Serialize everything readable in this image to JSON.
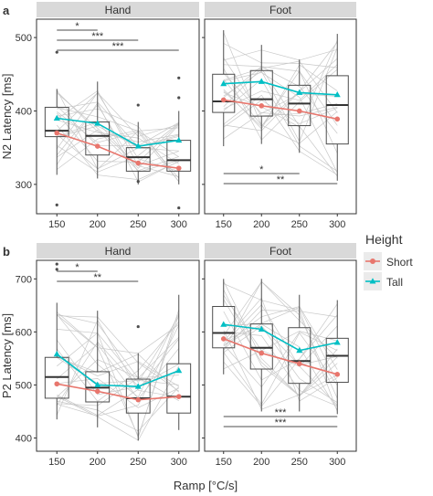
{
  "figure": {
    "x_axis_label": "Ramp [°C/s]",
    "legend": {
      "title": "Height",
      "items": [
        {
          "name": "Short",
          "color": "#E8766D",
          "marker": "circle"
        },
        {
          "name": "Tall",
          "color": "#00BFC4",
          "marker": "triangle"
        }
      ]
    }
  },
  "chart_data": [
    {
      "type": "box",
      "panel_letter": "a",
      "facet": "Hand",
      "ylabel": "N2 Latency [ms]",
      "categories": [
        "150",
        "200",
        "250",
        "300"
      ],
      "yticks": [
        300,
        400,
        500
      ],
      "ylim": [
        260,
        525
      ],
      "boxes": [
        {
          "whisker_low": 313,
          "q1": 365,
          "median": 373,
          "q3": 405,
          "whisker_high": 430,
          "outliers": [
            480,
            272
          ]
        },
        {
          "whisker_low": 308,
          "q1": 340,
          "median": 366,
          "q3": 385,
          "whisker_high": 440,
          "outliers": []
        },
        {
          "whisker_low": 300,
          "q1": 318,
          "median": 337,
          "q3": 350,
          "whisker_high": 385,
          "outliers": [
            408,
            304
          ]
        },
        {
          "whisker_low": 300,
          "q1": 318,
          "median": 333,
          "q3": 360,
          "whisker_high": 400,
          "outliers": [
            445,
            418,
            268
          ]
        }
      ],
      "series": [
        {
          "name": "Short",
          "values": [
            370,
            352,
            329,
            322
          ]
        },
        {
          "name": "Tall",
          "values": [
            390,
            383,
            352,
            360
          ]
        }
      ],
      "significance": [
        {
          "from": "150",
          "to": "200",
          "label": "*"
        },
        {
          "from": "150",
          "to": "250",
          "label": "***"
        },
        {
          "from": "150",
          "to": "300",
          "label": "***"
        }
      ]
    },
    {
      "type": "box",
      "panel_letter": "",
      "facet": "Foot",
      "ylabel": "",
      "categories": [
        "150",
        "200",
        "250",
        "300"
      ],
      "yticks": [
        300,
        400,
        500
      ],
      "ylim": [
        260,
        525
      ],
      "boxes": [
        {
          "whisker_low": 352,
          "q1": 398,
          "median": 413,
          "q3": 450,
          "whisker_high": 510,
          "outliers": []
        },
        {
          "whisker_low": 355,
          "q1": 393,
          "median": 416,
          "q3": 455,
          "whisker_high": 490,
          "outliers": []
        },
        {
          "whisker_low": 343,
          "q1": 380,
          "median": 410,
          "q3": 435,
          "whisker_high": 470,
          "outliers": []
        },
        {
          "whisker_low": 305,
          "q1": 355,
          "median": 408,
          "q3": 448,
          "whisker_high": 505,
          "outliers": []
        }
      ],
      "series": [
        {
          "name": "Short",
          "values": [
            415,
            407,
            400,
            389
          ]
        },
        {
          "name": "Tall",
          "values": [
            437,
            440,
            425,
            422
          ]
        }
      ],
      "significance": [
        {
          "from": "150",
          "to": "250",
          "label": "*"
        },
        {
          "from": "150",
          "to": "300",
          "label": "**"
        }
      ]
    },
    {
      "type": "box",
      "panel_letter": "b",
      "facet": "Hand",
      "ylabel": "P2 Latency [ms]",
      "categories": [
        "150",
        "200",
        "250",
        "300"
      ],
      "yticks": [
        400,
        500,
        600,
        700
      ],
      "ylim": [
        375,
        735
      ],
      "boxes": [
        {
          "whisker_low": 435,
          "q1": 475,
          "median": 515,
          "q3": 552,
          "whisker_high": 655,
          "outliers": [
            728,
            718
          ]
        },
        {
          "whisker_low": 420,
          "q1": 468,
          "median": 495,
          "q3": 525,
          "whisker_high": 640,
          "outliers": []
        },
        {
          "whisker_low": 395,
          "q1": 447,
          "median": 475,
          "q3": 511,
          "whisker_high": 560,
          "outliers": [
            610
          ]
        },
        {
          "whisker_low": 415,
          "q1": 447,
          "median": 478,
          "q3": 540,
          "whisker_high": 670,
          "outliers": []
        }
      ],
      "series": [
        {
          "name": "Short",
          "values": [
            502,
            488,
            472,
            478
          ]
        },
        {
          "name": "Tall",
          "values": [
            558,
            500,
            497,
            527
          ]
        }
      ],
      "significance": [
        {
          "from": "150",
          "to": "200",
          "label": "*"
        },
        {
          "from": "150",
          "to": "250",
          "label": "**"
        }
      ]
    },
    {
      "type": "box",
      "panel_letter": "",
      "facet": "Foot",
      "ylabel": "",
      "categories": [
        "150",
        "200",
        "250",
        "300"
      ],
      "yticks": [
        400,
        500,
        600,
        700
      ],
      "ylim": [
        375,
        735
      ],
      "boxes": [
        {
          "whisker_low": 520,
          "q1": 570,
          "median": 598,
          "q3": 648,
          "whisker_high": 700,
          "outliers": []
        },
        {
          "whisker_low": 450,
          "q1": 530,
          "median": 570,
          "q3": 615,
          "whisker_high": 700,
          "outliers": []
        },
        {
          "whisker_low": 450,
          "q1": 503,
          "median": 545,
          "q3": 608,
          "whisker_high": 670,
          "outliers": []
        },
        {
          "whisker_low": 445,
          "q1": 505,
          "median": 555,
          "q3": 588,
          "whisker_high": 660,
          "outliers": []
        }
      ],
      "series": [
        {
          "name": "Short",
          "values": [
            587,
            560,
            540,
            520
          ]
        },
        {
          "name": "Tall",
          "values": [
            614,
            605,
            565,
            580
          ]
        }
      ],
      "significance": [
        {
          "from": "150",
          "to": "300",
          "label": "***"
        },
        {
          "from": "150",
          "to": "300",
          "label": "***"
        }
      ]
    }
  ]
}
